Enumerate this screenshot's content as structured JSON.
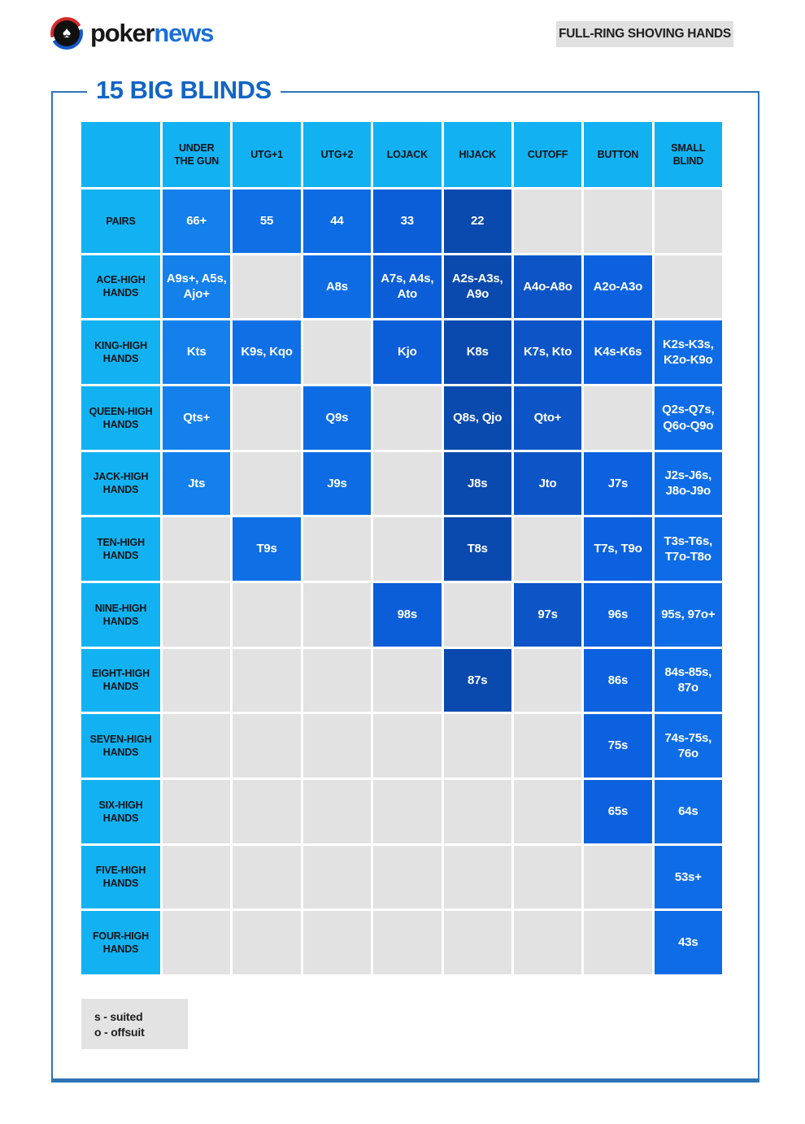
{
  "header": {
    "logo": {
      "black": "poker",
      "blue": "news",
      "spade_glyph": "♠"
    },
    "badge": "FULL-RING SHOVING HANDS"
  },
  "title": "15 BIG BLINDS",
  "legend": {
    "line1": "s - suited",
    "line2": "o - offsuit"
  },
  "colors": {
    "header_bg": "#12b2f2",
    "empty_cell": "#e2e2e2",
    "frame_border": "#2e75b6",
    "title_text": "#1165c5",
    "logo_news": "#1a6fd6",
    "logo_red": "#d42a2a",
    "logo_blue": "#1558c8"
  },
  "chart_data": {
    "type": "table",
    "title": "15 BIG BLINDS",
    "subtitle": "FULL-RING SHOVING HANDS",
    "columns": [
      {
        "label": "UNDER\nTHE GUN",
        "color": "#1380ec"
      },
      {
        "label": "UTG+1",
        "color": "#0f70e6"
      },
      {
        "label": "UTG+2",
        "color": "#0d6ce4"
      },
      {
        "label": "LOJACK",
        "color": "#0c5ed8"
      },
      {
        "label": "HIJACK",
        "color": "#0a4aae"
      },
      {
        "label": "CUTOFF",
        "color": "#0d55c6"
      },
      {
        "label": "BUTTON",
        "color": "#0c62de"
      },
      {
        "label": "SMALL\nBLIND",
        "color": "#0e6de6"
      }
    ],
    "rows": [
      {
        "label": "PAIRS",
        "cells": [
          "66+",
          "55",
          "44",
          "33",
          "22",
          null,
          null,
          null
        ]
      },
      {
        "label": "ACE-HIGH HANDS",
        "cells": [
          "A9s+, A5s, Ajo+",
          null,
          "A8s",
          "A7s, A4s, Ato",
          "A2s-A3s, A9o",
          "A4o-A8o",
          "A2o-A3o",
          null
        ]
      },
      {
        "label": "KING-HIGH HANDS",
        "cells": [
          "Kts",
          "K9s, Kqo",
          null,
          "Kjo",
          "K8s",
          "K7s, Kto",
          "K4s-K6s",
          "K2s-K3s, K2o-K9o"
        ]
      },
      {
        "label": "QUEEN-HIGH HANDS",
        "cells": [
          "Qts+",
          null,
          "Q9s",
          null,
          "Q8s, Qjo",
          "Qto+",
          null,
          "Q2s-Q7s, Q6o-Q9o"
        ]
      },
      {
        "label": "JACK-HIGH HANDS",
        "cells": [
          "Jts",
          null,
          "J9s",
          null,
          "J8s",
          "Jto",
          "J7s",
          "J2s-J6s, J8o-J9o"
        ]
      },
      {
        "label": "TEN-HIGH HANDS",
        "cells": [
          null,
          "T9s",
          null,
          null,
          "T8s",
          null,
          "T7s, T9o",
          "T3s-T6s, T7o-T8o"
        ]
      },
      {
        "label": "NINE-HIGH HANDS",
        "cells": [
          null,
          null,
          null,
          "98s",
          null,
          "97s",
          "96s",
          "95s, 97o+"
        ]
      },
      {
        "label": "EIGHT-HIGH HANDS",
        "cells": [
          null,
          null,
          null,
          null,
          "87s",
          null,
          "86s",
          "84s-85s, 87o"
        ]
      },
      {
        "label": "SEVEN-HIGH HANDS",
        "cells": [
          null,
          null,
          null,
          null,
          null,
          null,
          "75s",
          "74s-75s, 76o"
        ]
      },
      {
        "label": "SIX-HIGH HANDS",
        "cells": [
          null,
          null,
          null,
          null,
          null,
          null,
          "65s",
          "64s"
        ]
      },
      {
        "label": "FIVE-HIGH HANDS",
        "cells": [
          null,
          null,
          null,
          null,
          null,
          null,
          null,
          "53s+"
        ]
      },
      {
        "label": "FOUR-HIGH HANDS",
        "cells": [
          null,
          null,
          null,
          null,
          null,
          null,
          null,
          "43s"
        ]
      }
    ]
  }
}
